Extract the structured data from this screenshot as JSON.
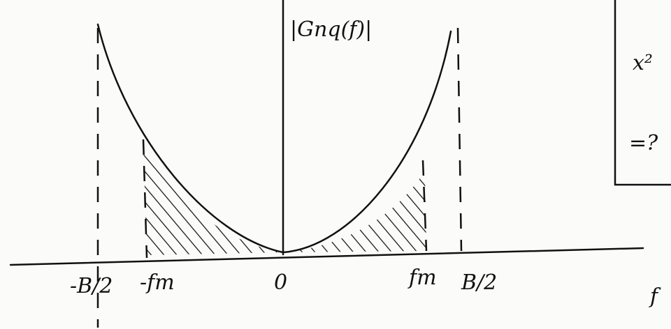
{
  "diagram": {
    "y_axis_label": "|Gnq(f)|",
    "x_axis_label": "f",
    "tick_labels": [
      "-B/2",
      "-fm",
      "0",
      "fm",
      "B/2"
    ],
    "box_texts": [
      "x²",
      "=?"
    ]
  }
}
